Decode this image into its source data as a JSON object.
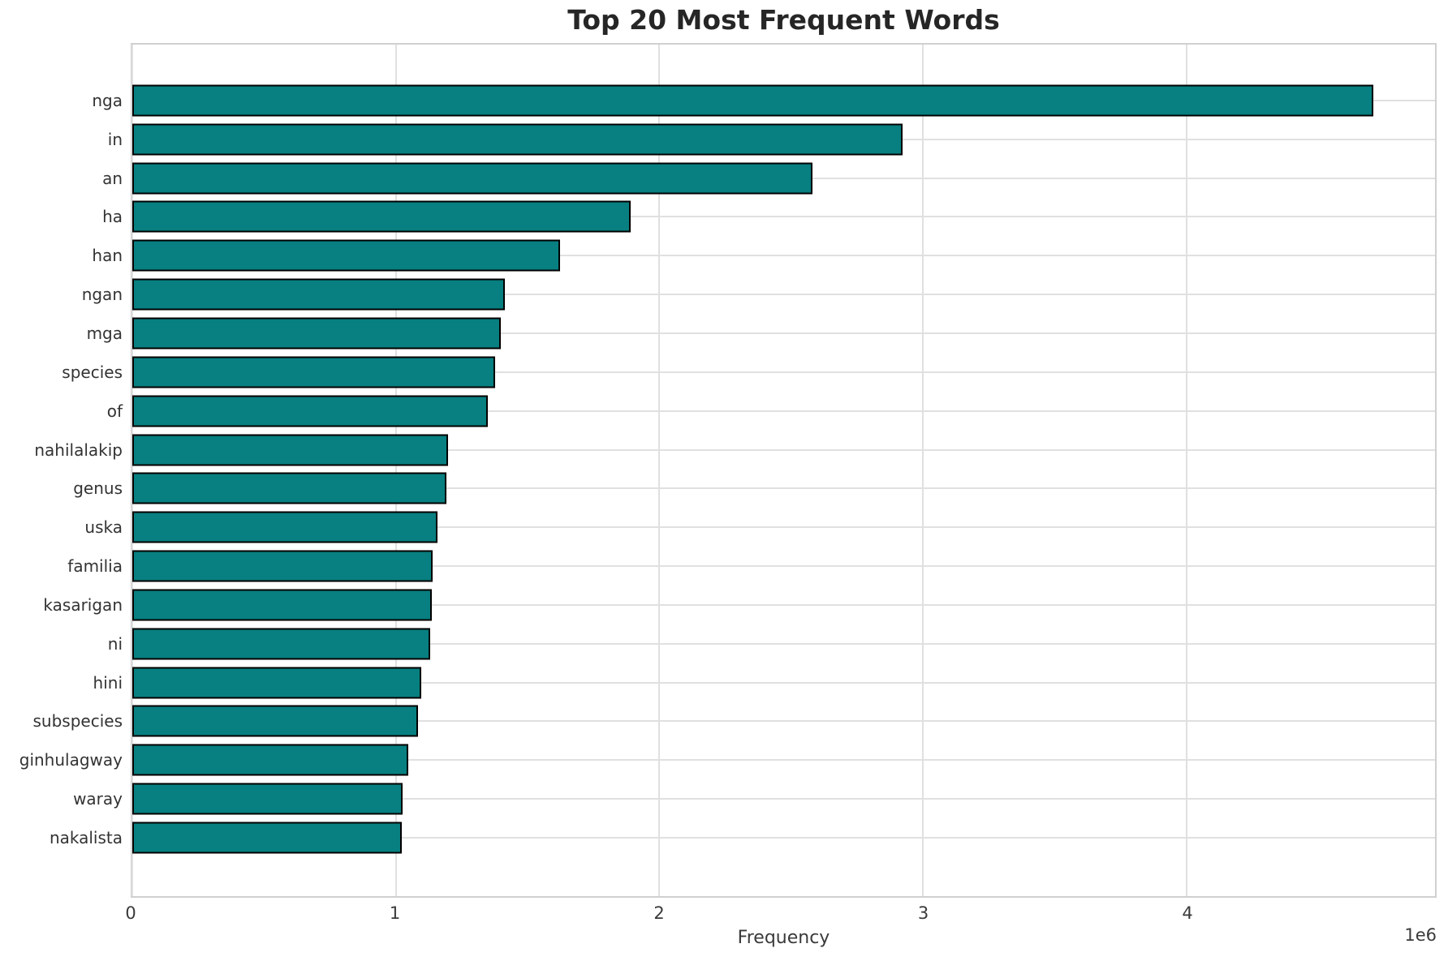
{
  "chart_data": {
    "type": "bar",
    "orientation": "horizontal",
    "title": "Top 20 Most Frequent Words",
    "xlabel": "Frequency",
    "ylabel": "",
    "x_axis_offset_label": "1e6",
    "categories": [
      "nga",
      "in",
      "an",
      "ha",
      "han",
      "ngan",
      "mga",
      "species",
      "of",
      "nahilalakip",
      "genus",
      "uska",
      "familia",
      "kasarigan",
      "ni",
      "hini",
      "subspecies",
      "ginhulagway",
      "waray",
      "nakalista"
    ],
    "values": [
      4712000,
      2926000,
      2585000,
      1893000,
      1625000,
      1417000,
      1401000,
      1379000,
      1352000,
      1202000,
      1195000,
      1161000,
      1144000,
      1141000,
      1133000,
      1099000,
      1087000,
      1051000,
      1028000,
      1025000
    ],
    "x_ticks": [
      0,
      1,
      2,
      3,
      4
    ],
    "x_tick_scale": 1000000,
    "xlim": [
      0,
      4943000
    ],
    "grid": true,
    "legend_position": "none",
    "colors": {
      "bar_fill": "#087f80",
      "bar_edge": "#000000",
      "grid": "#e0e0e0",
      "frame": "#d0d0d0",
      "title_text": "#262626",
      "tick_text": "#3a3a3a"
    }
  }
}
